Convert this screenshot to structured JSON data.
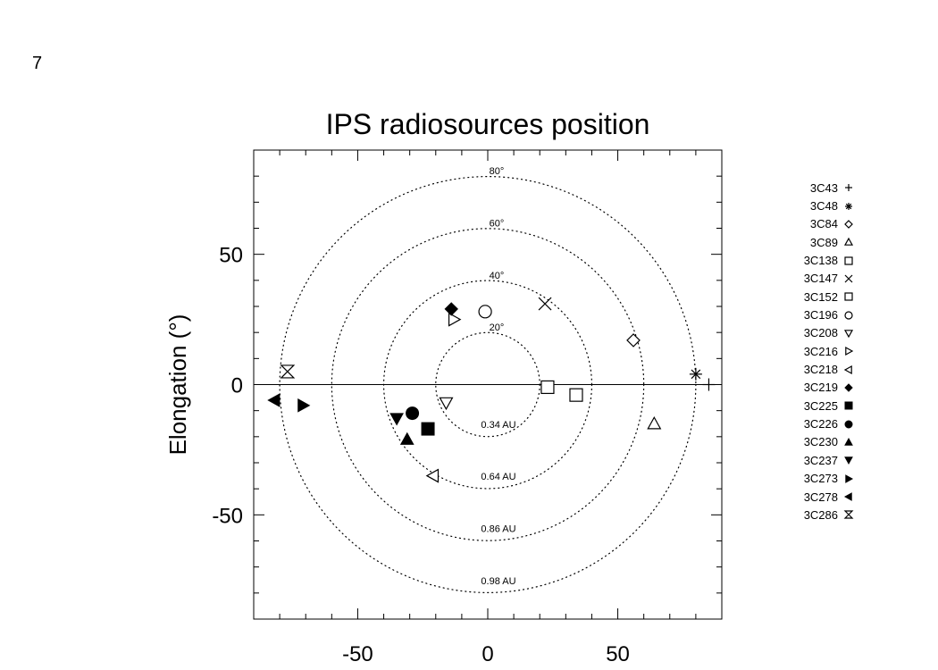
{
  "page_number": "7",
  "chart_data": {
    "type": "scatter",
    "title": "IPS radiosources position",
    "xlabel": "",
    "ylabel": "Elongation (°)",
    "xlim": [
      -90,
      90
    ],
    "ylim": [
      -90,
      90
    ],
    "xticks": [
      -50,
      0,
      50
    ],
    "yticks": [
      -50,
      0,
      50
    ],
    "grid": false,
    "legend_position": "right",
    "circles": [
      {
        "radius": 20,
        "angle_label": "20°",
        "au_label": "0.34 AU",
        "linestyle": "dotted"
      },
      {
        "radius": 40,
        "angle_label": "40°",
        "au_label": "0.64 AU",
        "linestyle": "dotted"
      },
      {
        "radius": 60,
        "angle_label": "60°",
        "au_label": "0.86 AU",
        "linestyle": "dotted"
      },
      {
        "radius": 80,
        "angle_label": "80°",
        "au_label": "0.98 AU",
        "linestyle": "dotted"
      }
    ],
    "series": [
      {
        "name": "3C43",
        "marker": "plus",
        "points": [
          [
            85,
            0
          ]
        ]
      },
      {
        "name": "3C48",
        "marker": "asterisk",
        "points": [
          [
            80,
            4
          ]
        ]
      },
      {
        "name": "3C84",
        "marker": "diamond-open",
        "points": [
          [
            56,
            17
          ]
        ]
      },
      {
        "name": "3C89",
        "marker": "triangle-open",
        "points": [
          [
            64,
            -15
          ]
        ]
      },
      {
        "name": "3C138",
        "marker": "square-open",
        "points": [
          [
            23,
            -1
          ]
        ]
      },
      {
        "name": "3C147",
        "marker": "cross",
        "points": [
          [
            22,
            31
          ]
        ]
      },
      {
        "name": "3C152",
        "marker": "square-open",
        "points": [
          [
            34,
            -4
          ]
        ]
      },
      {
        "name": "3C196",
        "marker": "circle-open",
        "points": [
          [
            -1,
            28
          ]
        ]
      },
      {
        "name": "3C208",
        "marker": "tri-down-open",
        "points": [
          [
            -16,
            -7
          ]
        ]
      },
      {
        "name": "3C216",
        "marker": "tri-right-open",
        "points": [
          [
            -13,
            25
          ]
        ]
      },
      {
        "name": "3C218",
        "marker": "tri-left-open",
        "points": [
          [
            -21,
            -35
          ]
        ]
      },
      {
        "name": "3C219",
        "marker": "diamond-filled",
        "points": [
          [
            -14,
            29
          ]
        ]
      },
      {
        "name": "3C225",
        "marker": "square-filled",
        "points": [
          [
            -23,
            -17
          ]
        ]
      },
      {
        "name": "3C226",
        "marker": "circle-filled",
        "points": [
          [
            -29,
            -11
          ]
        ]
      },
      {
        "name": "3C230",
        "marker": "tri-up-filled",
        "points": [
          [
            -31,
            -21
          ]
        ]
      },
      {
        "name": "3C237",
        "marker": "tri-down-filled",
        "points": [
          [
            -35,
            -13
          ]
        ]
      },
      {
        "name": "3C273",
        "marker": "tri-right-filled",
        "points": [
          [
            -71,
            -8
          ]
        ]
      },
      {
        "name": "3C278",
        "marker": "tri-left-filled",
        "points": [
          [
            -82,
            -6
          ]
        ]
      },
      {
        "name": "3C286",
        "marker": "hourglass",
        "points": [
          [
            -77,
            5
          ]
        ]
      }
    ]
  }
}
